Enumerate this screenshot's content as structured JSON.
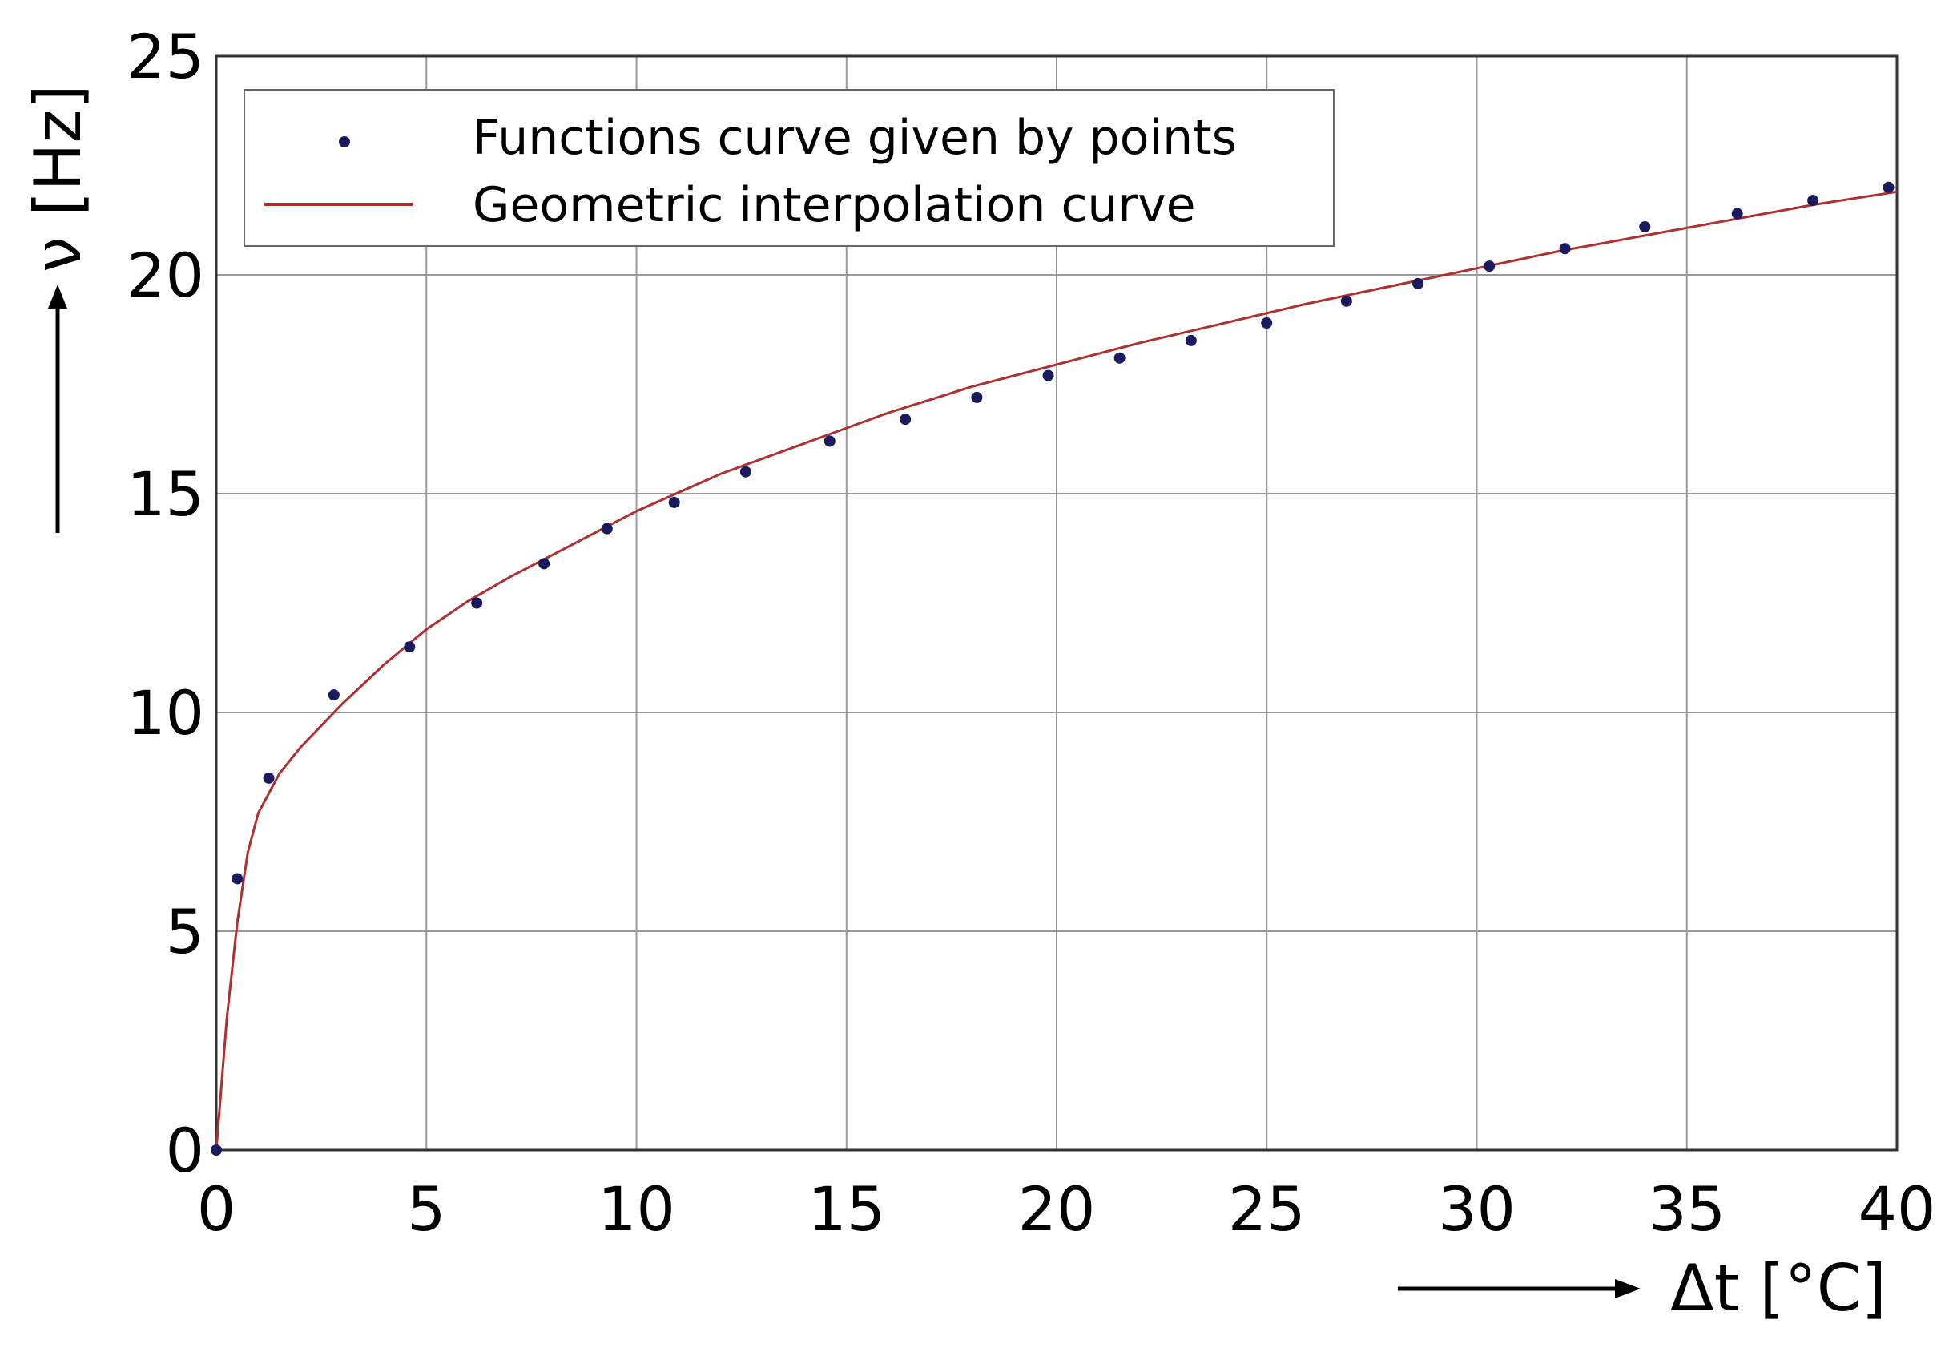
{
  "chart_data": {
    "type": "scatter",
    "xlabel": "Δt [°C]",
    "ylabel": "ν [Hz]",
    "xlim": [
      0,
      40
    ],
    "ylim": [
      0,
      25
    ],
    "xticks": [
      0,
      5,
      10,
      15,
      20,
      25,
      30,
      35,
      40
    ],
    "yticks": [
      0,
      5,
      10,
      15,
      20,
      25
    ],
    "xtick_labels": [
      "0",
      "5",
      "10",
      "15",
      "20",
      "25",
      "30",
      "35",
      "40"
    ],
    "ytick_labels": [
      "0",
      "5",
      "10",
      "15",
      "20",
      "25"
    ],
    "grid": true,
    "legend_position": "top-left",
    "series": [
      {
        "name": "Functions curve given by points",
        "kind": "scatter",
        "color": "#1a1a5e",
        "x": [
          0,
          0.5,
          1.25,
          2.8,
          4.6,
          6.2,
          7.8,
          9.3,
          10.9,
          12.6,
          14.6,
          16.4,
          18.1,
          19.8,
          21.5,
          23.2,
          25.0,
          26.9,
          28.6,
          30.3,
          32.1,
          34.0,
          36.2,
          38.0,
          39.8
        ],
        "y": [
          0,
          6.2,
          8.5,
          10.4,
          11.5,
          12.5,
          13.4,
          14.2,
          14.8,
          15.5,
          16.2,
          16.7,
          17.2,
          17.7,
          18.1,
          18.5,
          18.9,
          19.4,
          19.8,
          20.2,
          20.6,
          21.1,
          21.4,
          21.7,
          22.0
        ]
      },
      {
        "name": "Geometric interpolation curve",
        "kind": "line",
        "color": "#b03030",
        "x": [
          0,
          0.25,
          0.5,
          0.75,
          1,
          1.5,
          2,
          3,
          4,
          5,
          6,
          7,
          8,
          10,
          12,
          14,
          16,
          18,
          20,
          22,
          24,
          26,
          28,
          30,
          32,
          34,
          36,
          38,
          40
        ],
        "y": [
          0,
          3.0,
          5.2,
          6.8,
          7.7,
          8.6,
          9.2,
          10.2,
          11.1,
          11.9,
          12.55,
          13.1,
          13.6,
          14.6,
          15.45,
          16.15,
          16.85,
          17.45,
          17.95,
          18.45,
          18.9,
          19.35,
          19.75,
          20.15,
          20.55,
          20.9,
          21.25,
          21.6,
          21.9
        ]
      }
    ]
  }
}
